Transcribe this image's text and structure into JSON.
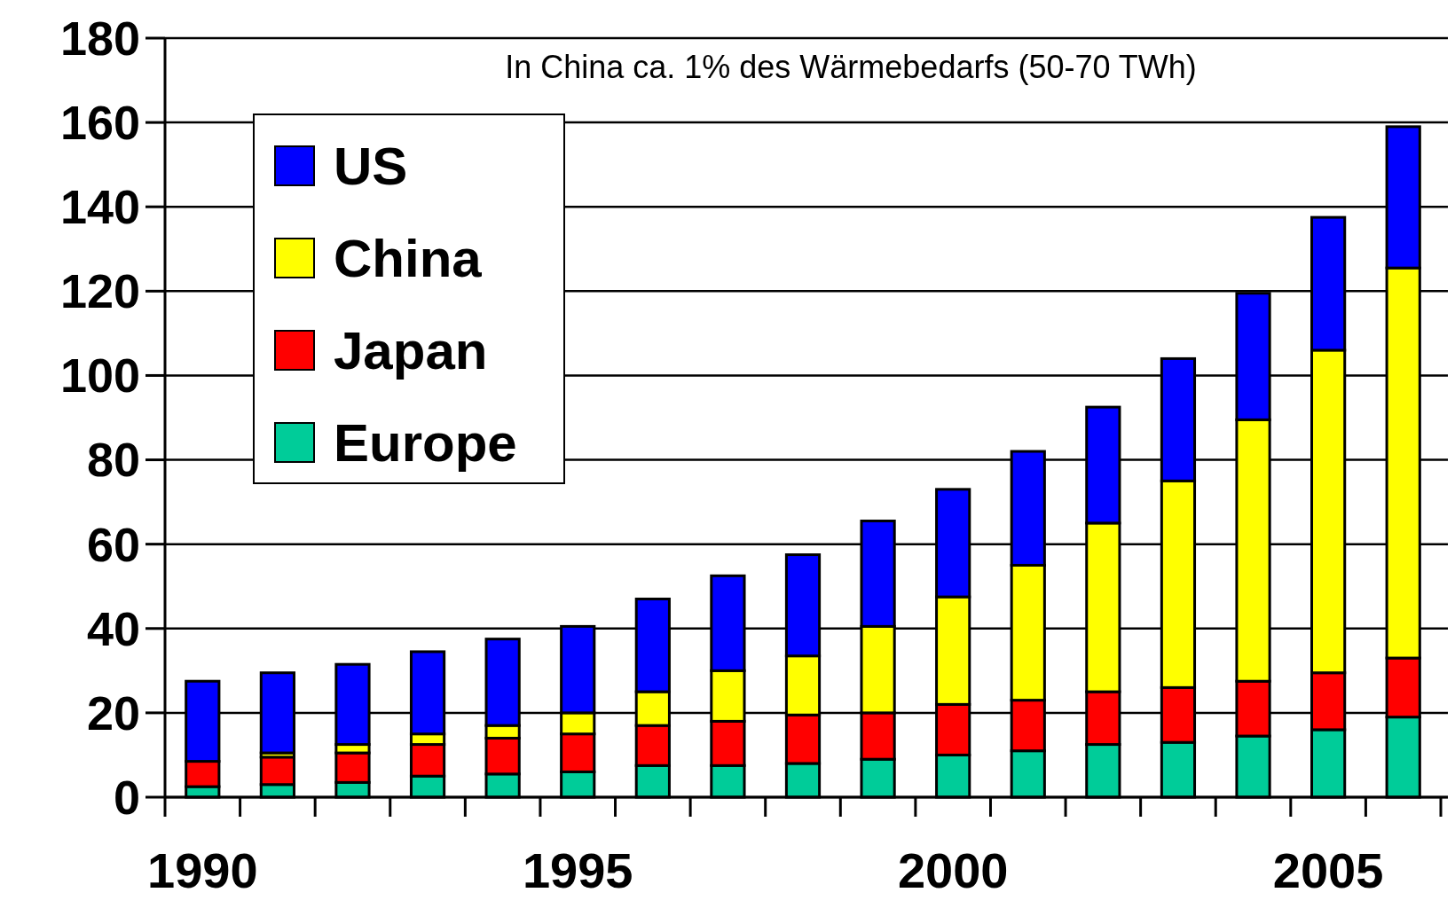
{
  "chart_data": {
    "type": "bar",
    "stacked": true,
    "annotations": [
      "In China ca. 1% des Wärmebedarfs (50-70 TWh)"
    ],
    "categories": [
      "1990",
      null,
      null,
      null,
      null,
      "1995",
      null,
      null,
      null,
      null,
      "2000",
      null,
      null,
      null,
      null,
      "2005",
      null
    ],
    "series": [
      {
        "name": "Europe",
        "color": "#00cc99",
        "values": [
          2.5,
          3,
          3.5,
          5,
          5.5,
          6,
          7.5,
          7.5,
          8,
          9,
          10,
          11,
          12.5,
          13,
          14.5,
          16,
          19
        ]
      },
      {
        "name": "Japan",
        "color": "#ff0000",
        "values": [
          6,
          6.5,
          7,
          7.5,
          8.5,
          9,
          9.5,
          10.5,
          11.5,
          11,
          12,
          12,
          12.5,
          13,
          13,
          13.5,
          14
        ]
      },
      {
        "name": "China",
        "color": "#ffff00",
        "values": [
          null,
          1,
          2,
          2.5,
          3,
          5,
          8,
          12,
          14,
          20.5,
          25.5,
          32,
          40,
          49,
          62,
          76.5,
          92.5
        ]
      },
      {
        "name": "US",
        "color": "#0000ff",
        "values": [
          19,
          19,
          19,
          19.5,
          20.5,
          20.5,
          22,
          22.5,
          24,
          25,
          25.5,
          27,
          27.5,
          29,
          30,
          31.5,
          33.5
        ]
      }
    ],
    "ylim": [
      0,
      180
    ],
    "yticks": [
      0,
      20,
      40,
      60,
      80,
      100,
      120,
      140,
      160,
      180
    ],
    "grid": "y",
    "legend": "top left"
  }
}
